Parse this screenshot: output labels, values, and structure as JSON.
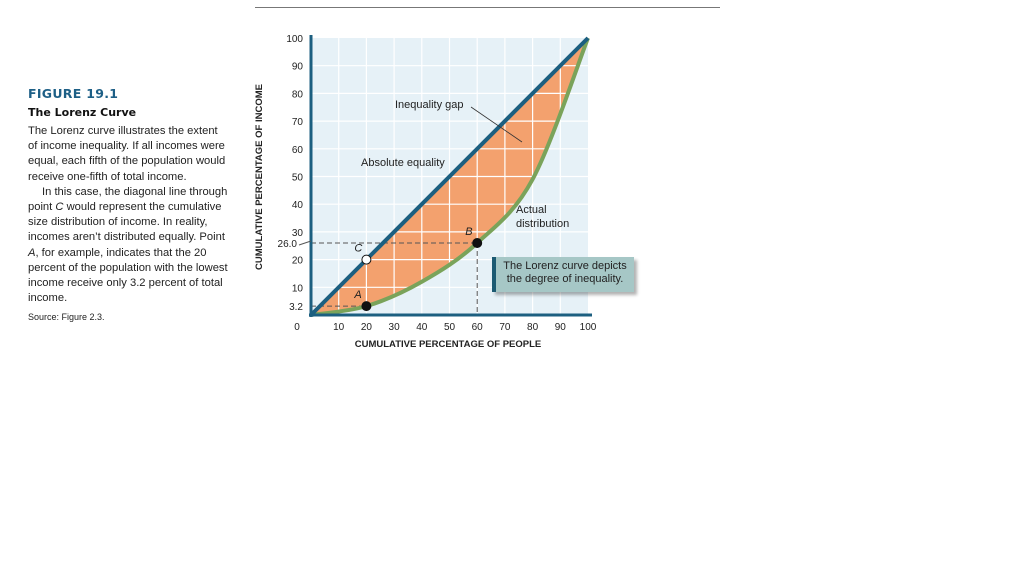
{
  "caption": {
    "figure_number": "FIGURE 19.1",
    "title": "The Lorenz Curve",
    "paragraph1": "The Lorenz curve illustrates the extent of income inequality. If all incomes were equal, each fifth of the population would receive one-fifth of total income.",
    "paragraph2_pre": "In this case, the diagonal line through point ",
    "paragraph2_c": "C",
    "paragraph2_mid": " would represent the cumulative size distribution of income. In reality, incomes aren’t distributed equally. Point ",
    "paragraph2_a": "A",
    "paragraph2_post": ", for example, indicates that the 20 percent of the population with the lowest income receive only 3.2 percent of total income.",
    "source": "Source: Figure 2.3."
  },
  "chart_data": {
    "type": "line",
    "xlabel": "CUMULATIVE PERCENTAGE OF PEOPLE",
    "ylabel": "CUMULATIVE PERCENTAGE OF INCOME",
    "xlim": [
      0,
      100
    ],
    "ylim": [
      0,
      100
    ],
    "grid": true,
    "x_ticks": [
      "0",
      "10",
      "20",
      "30",
      "40",
      "50",
      "60",
      "70",
      "80",
      "90",
      "100"
    ],
    "y_ticks": [
      "10",
      "20",
      "30",
      "40",
      "50",
      "60",
      "70",
      "80",
      "90",
      "100"
    ],
    "y_extra_ticks": [
      "3.2",
      "26.0"
    ],
    "series": [
      {
        "name": "Absolute equality",
        "color": "#1c5f80",
        "x": [
          0,
          100
        ],
        "y": [
          0,
          100
        ]
      },
      {
        "name": "Actual distribution",
        "color": "#7aa35a",
        "x": [
          0,
          20,
          40,
          60,
          80,
          100
        ],
        "y": [
          0,
          3.2,
          12,
          26,
          49,
          100
        ]
      }
    ],
    "fill_color": "#f3a16e",
    "background_color": "#e6f1f7",
    "points": [
      {
        "label": "A",
        "x": 20,
        "y": 3.2,
        "filled": true
      },
      {
        "label": "B",
        "x": 60,
        "y": 26.0,
        "filled": true
      },
      {
        "label": "C",
        "x": 20,
        "y": 20,
        "filled": false
      }
    ],
    "annotations": {
      "inequality_gap": "Inequality gap",
      "absolute_equality": "Absolute equality",
      "actual_distribution_1": "Actual",
      "actual_distribution_2": "distribution",
      "callout_1": "The Lorenz curve depicts",
      "callout_2": "the degree of inequality."
    }
  }
}
